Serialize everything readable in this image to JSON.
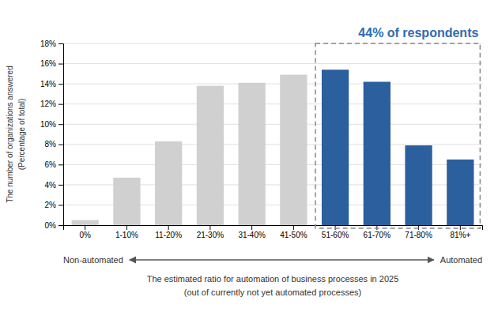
{
  "chart_data": {
    "type": "bar",
    "categories": [
      "0%",
      "1-10%",
      "11-20%",
      "21-30%",
      "31-40%",
      "41-50%",
      "51-60%",
      "61-70%",
      "71-80%",
      "81%+"
    ],
    "values": [
      0.5,
      4.7,
      8.3,
      13.8,
      14.1,
      14.9,
      15.4,
      14.2,
      7.9,
      6.5
    ],
    "colors": [
      "#d0d0d0",
      "#d0d0d0",
      "#d0d0d0",
      "#d0d0d0",
      "#d0d0d0",
      "#d0d0d0",
      "#2b5f9e",
      "#2b5f9e",
      "#2b5f9e",
      "#2b5f9e"
    ],
    "ylabel": [
      "The number of organizations answered",
      "(Percentage of total)"
    ],
    "xlabel": [
      "The estimated ratio for automation of business processes in 2025",
      "(out of currently not yet automated processes)"
    ],
    "annotations": [
      {
        "text": "44% of respondents",
        "color": "#2e6db4",
        "box_color": "#888888",
        "from": "51-60%",
        "to": "81%+"
      }
    ],
    "arrow": {
      "left": "Non-automated",
      "right": "Automated"
    },
    "ylim": [
      0,
      18
    ],
    "yticks": [
      {
        "value": 0,
        "label": "0%"
      },
      {
        "value": 2,
        "label": "2%"
      },
      {
        "value": 4,
        "label": "4%"
      },
      {
        "value": 6,
        "label": "6%"
      },
      {
        "value": 8,
        "label": "8%"
      },
      {
        "value": 10,
        "label": "10%"
      },
      {
        "value": 12,
        "label": "12%"
      },
      {
        "value": 14,
        "label": "14%"
      },
      {
        "value": 16,
        "label": "16%"
      },
      {
        "value": 18,
        "label": "18%"
      }
    ],
    "grid": true
  }
}
